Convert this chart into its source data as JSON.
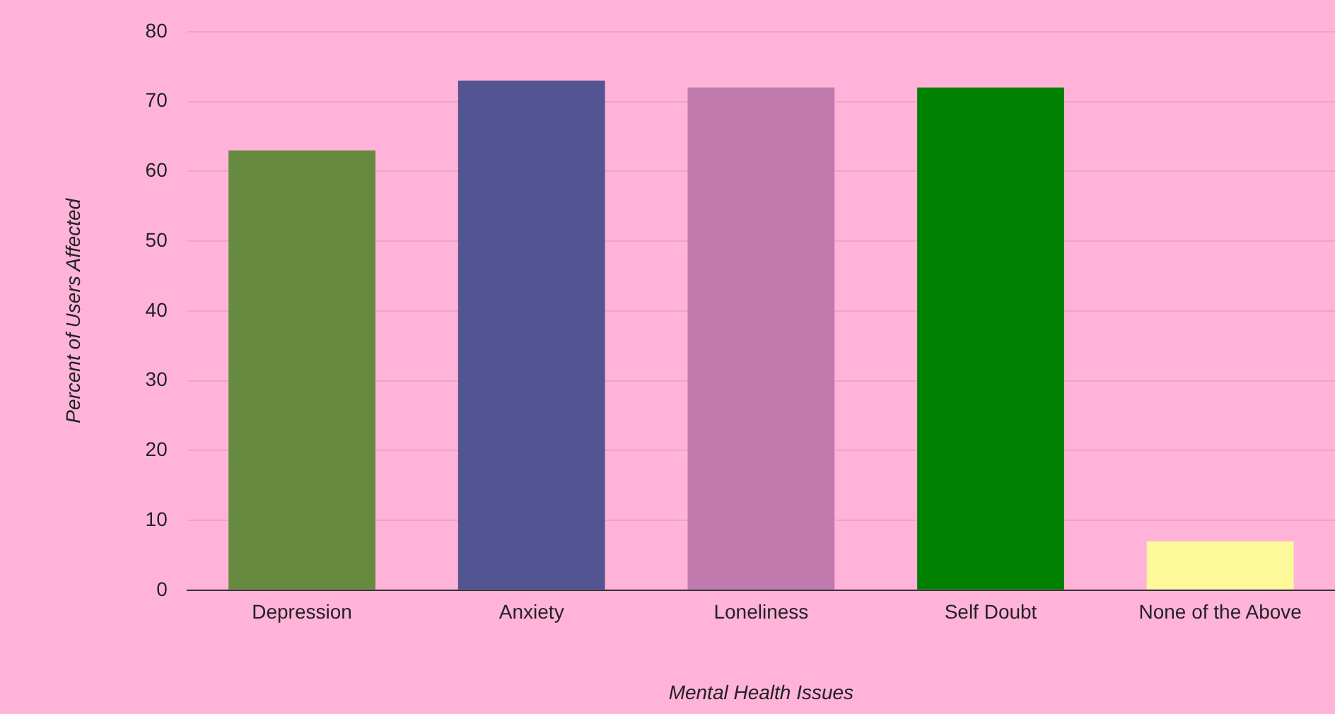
{
  "chart_data": {
    "type": "bar",
    "xlabel": "Mental Health Issues",
    "ylabel": "Percent of Users Affected",
    "categories": [
      "Depression",
      "Anxiety",
      "Loneliness",
      "Self Doubt",
      "None of the Above"
    ],
    "values": [
      63,
      73,
      72,
      72,
      7
    ],
    "colors": [
      "#678a41",
      "#535593",
      "#c07aae",
      "#008000",
      "#fdf99a"
    ],
    "ylim": [
      0,
      80
    ],
    "yticks": [
      0,
      10,
      20,
      30,
      40,
      50,
      60,
      70,
      80
    ],
    "grid": "y",
    "legend": false
  }
}
